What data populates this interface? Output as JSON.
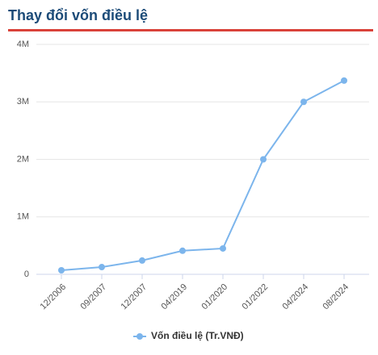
{
  "chart_data": {
    "type": "line",
    "title": "Thay đổi vốn điều lệ",
    "categories": [
      "12/2006",
      "09/2007",
      "12/2007",
      "04/2019",
      "01/2020",
      "01/2022",
      "04/2024",
      "08/2024"
    ],
    "series": [
      {
        "name": "Vốn điều lệ (Tr.VNĐ)",
        "color": "#7cb5ec",
        "values": [
          70000,
          126000,
          240000,
          410000,
          450000,
          2000000,
          3000000,
          3370000
        ]
      }
    ],
    "ylim": [
      0,
      4000000
    ],
    "yticks": [
      0,
      {
        "value": 1000000,
        "label": "1M"
      },
      {
        "value": 2000000,
        "label": "2M"
      },
      {
        "value": 3000000,
        "label": "3M"
      },
      {
        "value": 4000000,
        "label": "4M"
      }
    ],
    "grid": true,
    "legend": "bottom"
  }
}
